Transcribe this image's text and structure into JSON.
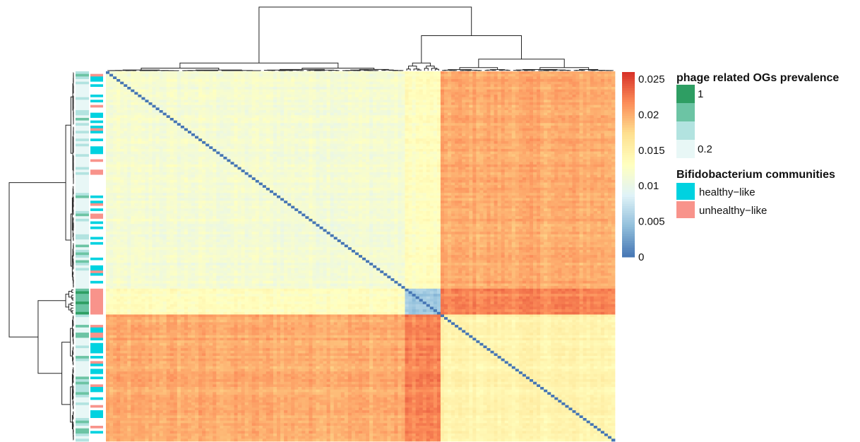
{
  "chart_data": {
    "type": "heatmap",
    "description_values": "pairwise distance matrix between samples, clustered hierarchically (rows and columns)",
    "value_range": [
      0,
      0.026
    ],
    "colorbar": {
      "ticks": [
        {
          "value": 0.025,
          "label": "0.025"
        },
        {
          "value": 0.02,
          "label": "0.02"
        },
        {
          "value": 0.015,
          "label": "0.015"
        },
        {
          "value": 0.01,
          "label": "0.01"
        },
        {
          "value": 0.005,
          "label": "0.005"
        },
        {
          "value": 0,
          "label": "0"
        }
      ],
      "colors": [
        "#4575b4",
        "#91bfdb",
        "#e0f3f8",
        "#ffffbf",
        "#fee090",
        "#fc8d59",
        "#d73027"
      ]
    },
    "n_samples": 143,
    "clusters": [
      {
        "size": 84,
        "within_value": 0.0115,
        "note": "large light-blue/yellow block"
      },
      {
        "size": 10,
        "within_value": 0.005,
        "note": "small distinct blue block"
      },
      {
        "size": 49,
        "within_value": 0.0145,
        "note": "bottom-right block"
      }
    ],
    "between_cluster_values": {
      "A_B": 0.013,
      "A_C": 0.02,
      "B_C": 0.022
    }
  },
  "legend_prevalence": {
    "title": "phage related OGs prevalence",
    "label_high": "1",
    "label_low": "0.2",
    "swatches": [
      "#2e9e63",
      "#6cc4a4",
      "#b2e3e0",
      "#e8f7f6"
    ]
  },
  "legend_communities": {
    "title": "Bifidobacterium communities",
    "items": [
      {
        "label": "healthy−like",
        "color": "#00d2e0"
      },
      {
        "label": "unhealthy−like",
        "color": "#f8938b"
      }
    ]
  }
}
